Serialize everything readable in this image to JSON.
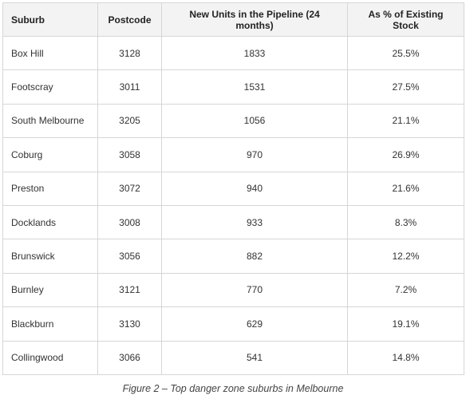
{
  "table": {
    "headers": [
      "Suburb",
      "Postcode",
      "New Units in the Pipeline (24 months)",
      "As % of Existing Stock"
    ],
    "rows": [
      [
        "Box Hill",
        "3128",
        "1833",
        "25.5%"
      ],
      [
        "Footscray",
        "3011",
        "1531",
        "27.5%"
      ],
      [
        "South Melbourne",
        "3205",
        "1056",
        "21.1%"
      ],
      [
        "Coburg",
        "3058",
        "970",
        "26.9%"
      ],
      [
        "Preston",
        "3072",
        "940",
        "21.6%"
      ],
      [
        "Docklands",
        "3008",
        "933",
        "8.3%"
      ],
      [
        "Brunswick",
        "3056",
        "882",
        "12.2%"
      ],
      [
        "Burnley",
        "3121",
        "770",
        "7.2%"
      ],
      [
        "Blackburn",
        "3130",
        "629",
        "19.1%"
      ],
      [
        "Collingwood",
        "3066",
        "541",
        "14.8%"
      ]
    ]
  },
  "caption": "Figure 2 – Top danger zone suburbs in Melbourne"
}
